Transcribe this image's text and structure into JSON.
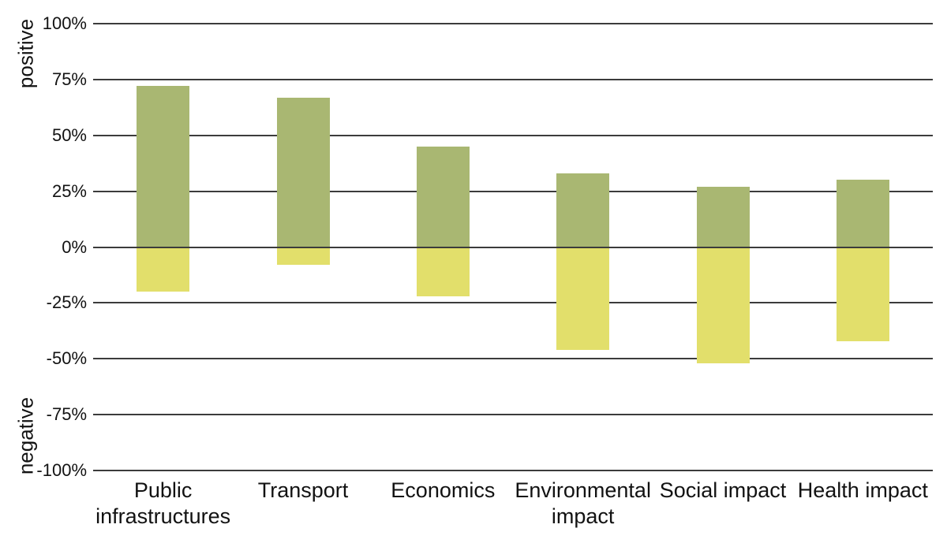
{
  "chart_data": {
    "type": "bar",
    "subtype": "diverging-stacked-column",
    "title": "",
    "xlabel": "",
    "ylabel_positive": "positive",
    "ylabel_negative": "negative",
    "categories": [
      "Public infrastructures",
      "Transport",
      "Economics",
      "Environmental impact",
      "Social impact",
      "Health impact"
    ],
    "series": [
      {
        "name": "positive",
        "color": "#a9b772",
        "values": [
          72,
          67,
          45,
          33,
          27,
          30
        ]
      },
      {
        "name": "negative",
        "color": "#e2df6b",
        "values": [
          -20,
          -8,
          -22,
          -46,
          -52,
          -42
        ]
      }
    ],
    "y_ticks": [
      {
        "value": 100,
        "label": "100%"
      },
      {
        "value": 75,
        "label": "75%"
      },
      {
        "value": 50,
        "label": "50%"
      },
      {
        "value": 25,
        "label": "25%"
      },
      {
        "value": 0,
        "label": "0%"
      },
      {
        "value": -25,
        "label": "-25%"
      },
      {
        "value": -50,
        "label": "-50%"
      },
      {
        "value": -75,
        "label": "-75%"
      },
      {
        "value": -100,
        "label": "-100%"
      }
    ],
    "ylim": [
      -100,
      100
    ],
    "grid": true,
    "legend": "none",
    "gridline_color": "#3c3c3c",
    "background": "#ffffff",
    "text_color": "#121212"
  }
}
